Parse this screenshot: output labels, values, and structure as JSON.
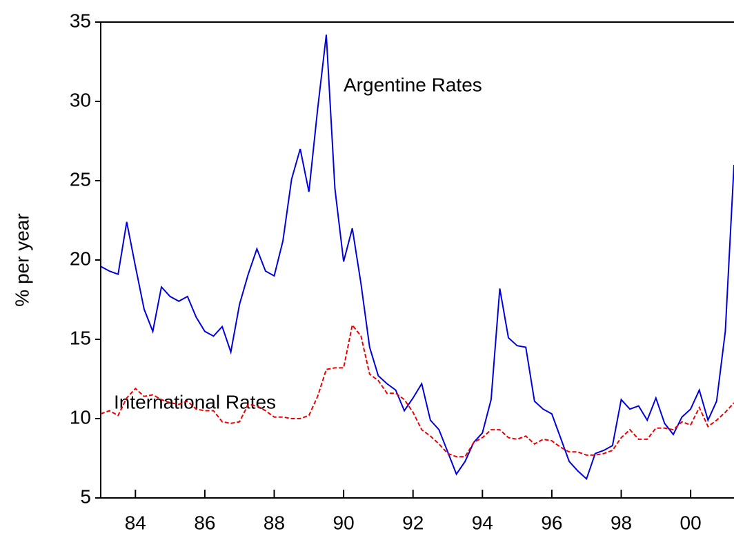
{
  "chart_data": {
    "type": "line",
    "y_label": "% per year",
    "annotations": [
      "Argentine Rates",
      "International Rates"
    ],
    "x": [
      1983,
      1983.25,
      1983.5,
      1983.75,
      1984,
      1984.25,
      1984.5,
      1984.75,
      1985,
      1985.25,
      1985.5,
      1985.75,
      1986,
      1986.25,
      1986.5,
      1986.75,
      1987,
      1987.25,
      1987.5,
      1987.75,
      1988,
      1988.25,
      1988.5,
      1988.75,
      1989,
      1989.25,
      1989.5,
      1989.75,
      1990,
      1990.25,
      1990.5,
      1990.75,
      1991,
      1991.25,
      1991.5,
      1991.75,
      1992,
      1992.25,
      1992.5,
      1992.75,
      1993,
      1993.25,
      1993.5,
      1993.75,
      1994,
      1994.25,
      1994.5,
      1994.75,
      1995,
      1995.25,
      1995.5,
      1995.75,
      1996,
      1996.25,
      1996.5,
      1996.75,
      1997,
      1997.25,
      1997.5,
      1997.75,
      1998,
      1998.25,
      1998.5,
      1998.75,
      1999,
      1999.25,
      1999.5,
      1999.75,
      2000,
      2000.25,
      2000.5,
      2000.75,
      2001,
      2001.25
    ],
    "series": [
      {
        "color": "#0000dd",
        "dash": false,
        "values": [
          19.6,
          19.3,
          19.1,
          22.4,
          19.6,
          16.9,
          15.5,
          18.3,
          17.7,
          17.4,
          17.7,
          16.4,
          15.5,
          15.2,
          15.8,
          14.2,
          17.2,
          19.1,
          20.7,
          19.3,
          19.0,
          21.2,
          25.1,
          27.0,
          24.3,
          29.5,
          34.2,
          24.5,
          19.9,
          22.0,
          18.5,
          14.5,
          12.7,
          12.2,
          11.8,
          10.5,
          11.3,
          12.2,
          9.9,
          9.3,
          7.9,
          6.5,
          7.3,
          8.5,
          9.1,
          11.2,
          18.2,
          15.1,
          14.6,
          14.5,
          11.1,
          10.6,
          10.3,
          8.8,
          7.3,
          6.7,
          6.2,
          7.8,
          8.0,
          8.3,
          11.2,
          10.6,
          10.8,
          9.9,
          11.3,
          9.7,
          9.0,
          10.1,
          10.6,
          11.8,
          9.9,
          11.1,
          15.5,
          26
        ]
      },
      {
        "color": "#ee0000",
        "dash": true,
        "values": [
          10.3,
          10.5,
          10.2,
          11.3,
          11.9,
          11.4,
          11.5,
          11.2,
          11.0,
          10.9,
          11.1,
          10.6,
          10.5,
          10.5,
          9.8,
          9.7,
          9.8,
          10.9,
          10.8,
          10.5,
          10.1,
          10.1,
          10.0,
          10.0,
          10.2,
          11.4,
          13.1,
          13.2,
          13.2,
          15.9,
          15.2,
          12.8,
          12.4,
          11.6,
          11.6,
          11.2,
          10.4,
          9.3,
          8.9,
          8.4,
          7.8,
          7.6,
          7.6,
          8.5,
          8.8,
          9.3,
          9.3,
          8.8,
          8.7,
          8.9,
          8.4,
          8.7,
          8.6,
          8.2,
          7.9,
          7.9,
          7.7,
          7.7,
          7.8,
          8.0,
          8.8,
          9.3,
          8.7,
          8.7,
          9.4,
          9.4,
          9.3,
          9.8,
          9.6,
          10.7,
          9.5,
          9.9,
          10.4,
          11.0
        ]
      }
    ],
    "xlim": [
      1983,
      2001.25
    ],
    "ylim": [
      5,
      35
    ],
    "xticks": [
      {
        "value": 1984,
        "label": "84"
      },
      {
        "value": 1986,
        "label": "86"
      },
      {
        "value": 1988,
        "label": "88"
      },
      {
        "value": 1990,
        "label": "90"
      },
      {
        "value": 1992,
        "label": "92"
      },
      {
        "value": 1994,
        "label": "94"
      },
      {
        "value": 1996,
        "label": "96"
      },
      {
        "value": 1998,
        "label": "98"
      },
      {
        "value": 2000,
        "label": "00"
      }
    ],
    "yticks": [
      5,
      10,
      15,
      20,
      25,
      30,
      35
    ]
  }
}
